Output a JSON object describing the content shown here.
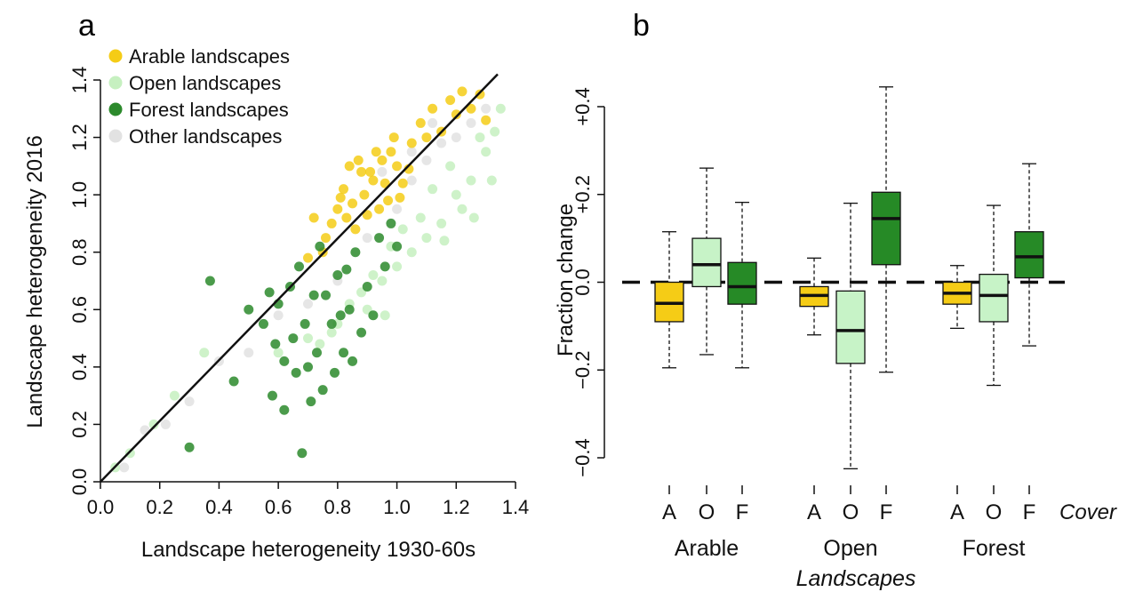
{
  "panels": {
    "a": {
      "letter": "a"
    },
    "b": {
      "letter": "b"
    }
  },
  "colors": {
    "arable": "#f5cc16",
    "open": "#c6f0c0",
    "forest": "#2c8a2c",
    "other": "#e2e2e2",
    "open_box": "#c7f3c7",
    "forest_box": "#268a26"
  },
  "chart_data": [
    {
      "type": "scatter",
      "panel": "a",
      "title": "",
      "xlabel": "Landscape heterogeneity 1930-60s",
      "ylabel": "Landscape heterogeneity 2016",
      "xlim": [
        0,
        1.4
      ],
      "ylim": [
        0,
        1.4
      ],
      "x_ticks": [
        "0.0",
        "0.2",
        "0.4",
        "0.6",
        "0.8",
        "1.0",
        "1.2",
        "1.4"
      ],
      "y_ticks": [
        "0.0",
        "0.2",
        "0.4",
        "0.6",
        "0.8",
        "1.0",
        "1.2",
        "1.4"
      ],
      "reference_line": {
        "label": "1:1",
        "from": [
          0,
          0
        ],
        "to": [
          1.4,
          1.4
        ]
      },
      "legend_position": "top-left",
      "series": [
        {
          "name": "Arable landscapes",
          "color_key": "arable",
          "points": [
            [
              0.78,
              0.9
            ],
            [
              0.82,
              1.02
            ],
            [
              0.85,
              0.97
            ],
            [
              0.88,
              1.08
            ],
            [
              0.9,
              0.93
            ],
            [
              0.92,
              1.05
            ],
            [
              0.95,
              1.12
            ],
            [
              0.97,
              0.98
            ],
            [
              1.0,
              1.1
            ],
            [
              1.02,
              1.04
            ],
            [
              0.86,
              0.88
            ],
            [
              0.8,
              0.95
            ],
            [
              0.84,
              1.1
            ],
            [
              0.93,
              1.15
            ],
            [
              0.99,
              1.2
            ],
            [
              1.05,
              1.18
            ],
            [
              1.08,
              1.25
            ],
            [
              1.12,
              1.3
            ],
            [
              1.15,
              1.22
            ],
            [
              1.18,
              1.33
            ],
            [
              1.2,
              1.28
            ],
            [
              1.22,
              1.36
            ],
            [
              1.25,
              1.3
            ],
            [
              1.28,
              1.35
            ],
            [
              1.3,
              1.26
            ],
            [
              0.76,
              0.85
            ],
            [
              0.72,
              0.92
            ],
            [
              0.89,
              1.0
            ],
            [
              0.94,
              0.95
            ],
            [
              1.01,
              0.99
            ],
            [
              1.04,
              1.09
            ],
            [
              0.87,
              1.12
            ],
            [
              0.83,
              0.92
            ],
            [
              0.91,
              1.08
            ],
            [
              0.96,
              1.04
            ],
            [
              0.75,
              0.8
            ],
            [
              0.7,
              0.78
            ],
            [
              0.98,
              1.15
            ],
            [
              1.1,
              1.2
            ],
            [
              0.81,
              0.99
            ]
          ]
        },
        {
          "name": "Open landscapes",
          "color_key": "open",
          "points": [
            [
              0.05,
              0.05
            ],
            [
              0.1,
              0.1
            ],
            [
              0.18,
              0.2
            ],
            [
              0.25,
              0.3
            ],
            [
              0.35,
              0.45
            ],
            [
              0.6,
              0.45
            ],
            [
              0.7,
              0.5
            ],
            [
              0.8,
              0.55
            ],
            [
              0.9,
              0.6
            ],
            [
              0.95,
              0.7
            ],
            [
              1.0,
              0.75
            ],
            [
              1.05,
              0.8
            ],
            [
              1.1,
              0.85
            ],
            [
              1.15,
              0.9
            ],
            [
              1.2,
              1.0
            ],
            [
              1.25,
              1.05
            ],
            [
              1.3,
              1.15
            ],
            [
              1.33,
              1.22
            ],
            [
              1.35,
              1.3
            ],
            [
              1.22,
              0.95
            ],
            [
              1.18,
              1.1
            ],
            [
              1.12,
              1.02
            ],
            [
              1.08,
              0.92
            ],
            [
              1.02,
              0.88
            ],
            [
              0.98,
              0.82
            ],
            [
              0.92,
              0.72
            ],
            [
              0.88,
              0.66
            ],
            [
              0.84,
              0.62
            ],
            [
              0.78,
              0.52
            ],
            [
              0.74,
              0.48
            ],
            [
              1.28,
              1.2
            ],
            [
              1.32,
              1.05
            ],
            [
              1.26,
              0.92
            ],
            [
              1.16,
              0.84
            ],
            [
              0.96,
              0.58
            ]
          ]
        },
        {
          "name": "Forest landscapes",
          "color_key": "forest",
          "points": [
            [
              0.37,
              0.7
            ],
            [
              0.45,
              0.35
            ],
            [
              0.5,
              0.6
            ],
            [
              0.55,
              0.55
            ],
            [
              0.58,
              0.3
            ],
            [
              0.6,
              0.62
            ],
            [
              0.62,
              0.25
            ],
            [
              0.65,
              0.5
            ],
            [
              0.67,
              0.75
            ],
            [
              0.68,
              0.1
            ],
            [
              0.7,
              0.4
            ],
            [
              0.72,
              0.65
            ],
            [
              0.74,
              0.82
            ],
            [
              0.75,
              0.32
            ],
            [
              0.78,
              0.55
            ],
            [
              0.8,
              0.72
            ],
            [
              0.82,
              0.45
            ],
            [
              0.84,
              0.6
            ],
            [
              0.86,
              0.8
            ],
            [
              0.88,
              0.52
            ],
            [
              0.9,
              0.68
            ],
            [
              0.92,
              0.58
            ],
            [
              0.94,
              0.85
            ],
            [
              0.96,
              0.75
            ],
            [
              0.98,
              0.9
            ],
            [
              1.0,
              0.82
            ],
            [
              0.66,
              0.38
            ],
            [
              0.69,
              0.55
            ],
            [
              0.73,
              0.45
            ],
            [
              0.76,
              0.65
            ],
            [
              0.79,
              0.38
            ],
            [
              0.81,
              0.58
            ],
            [
              0.83,
              0.74
            ],
            [
              0.85,
              0.42
            ],
            [
              0.64,
              0.68
            ],
            [
              0.71,
              0.28
            ],
            [
              0.62,
              0.42
            ],
            [
              0.59,
              0.48
            ],
            [
              0.57,
              0.66
            ],
            [
              0.3,
              0.12
            ]
          ]
        },
        {
          "name": "Other landscapes",
          "color_key": "other",
          "points": [
            [
              0.08,
              0.05
            ],
            [
              0.15,
              0.18
            ],
            [
              0.22,
              0.2
            ],
            [
              0.3,
              0.28
            ],
            [
              0.4,
              0.42
            ],
            [
              0.5,
              0.45
            ],
            [
              0.6,
              0.58
            ],
            [
              0.7,
              0.62
            ],
            [
              0.8,
              0.7
            ],
            [
              0.9,
              0.85
            ],
            [
              1.0,
              0.95
            ],
            [
              1.05,
              1.05
            ],
            [
              1.1,
              1.12
            ],
            [
              1.15,
              1.18
            ],
            [
              1.2,
              1.2
            ],
            [
              1.25,
              1.25
            ],
            [
              1.3,
              1.3
            ],
            [
              0.95,
              1.08
            ],
            [
              1.05,
              1.15
            ],
            [
              1.12,
              1.25
            ]
          ]
        }
      ]
    },
    {
      "type": "boxplot",
      "panel": "b",
      "title": "",
      "ylabel": "Fraction change",
      "ylim": [
        -0.48,
        0.48
      ],
      "y_ticks": [
        "−0.4",
        "−0.2",
        "0.0",
        "+0.2",
        "+0.4"
      ],
      "reference_line": {
        "y": 0.0,
        "style": "dashed"
      },
      "cover_axis_label": "Cover",
      "landscapes_axis_label": "Landscapes",
      "groups": [
        "Arable",
        "Open",
        "Forest"
      ],
      "boxes": [
        {
          "group": "Arable",
          "cover": "A",
          "color_key": "arable",
          "min": -0.195,
          "q1": -0.09,
          "median": -0.048,
          "q3": 0.0,
          "max": 0.115
        },
        {
          "group": "Arable",
          "cover": "O",
          "color_key": "open_box",
          "min": -0.165,
          "q1": -0.01,
          "median": 0.04,
          "q3": 0.1,
          "max": 0.26
        },
        {
          "group": "Arable",
          "cover": "F",
          "color_key": "forest_box",
          "min": -0.195,
          "q1": -0.05,
          "median": -0.01,
          "q3": 0.045,
          "max": 0.182
        },
        {
          "group": "Open",
          "cover": "A",
          "color_key": "arable",
          "min": -0.12,
          "q1": -0.055,
          "median": -0.03,
          "q3": -0.01,
          "max": 0.055
        },
        {
          "group": "Open",
          "cover": "O",
          "color_key": "open_box",
          "min": -0.425,
          "q1": -0.185,
          "median": -0.11,
          "q3": -0.02,
          "max": 0.18
        },
        {
          "group": "Open",
          "cover": "F",
          "color_key": "forest_box",
          "min": -0.205,
          "q1": 0.04,
          "median": 0.145,
          "q3": 0.205,
          "max": 0.445
        },
        {
          "group": "Forest",
          "cover": "A",
          "color_key": "arable",
          "min": -0.105,
          "q1": -0.05,
          "median": -0.025,
          "q3": 0.0,
          "max": 0.038
        },
        {
          "group": "Forest",
          "cover": "O",
          "color_key": "open_box",
          "min": -0.235,
          "q1": -0.09,
          "median": -0.03,
          "q3": 0.018,
          "max": 0.175
        },
        {
          "group": "Forest",
          "cover": "F",
          "color_key": "forest_box",
          "min": -0.145,
          "q1": 0.01,
          "median": 0.058,
          "q3": 0.115,
          "max": 0.27
        }
      ]
    }
  ]
}
